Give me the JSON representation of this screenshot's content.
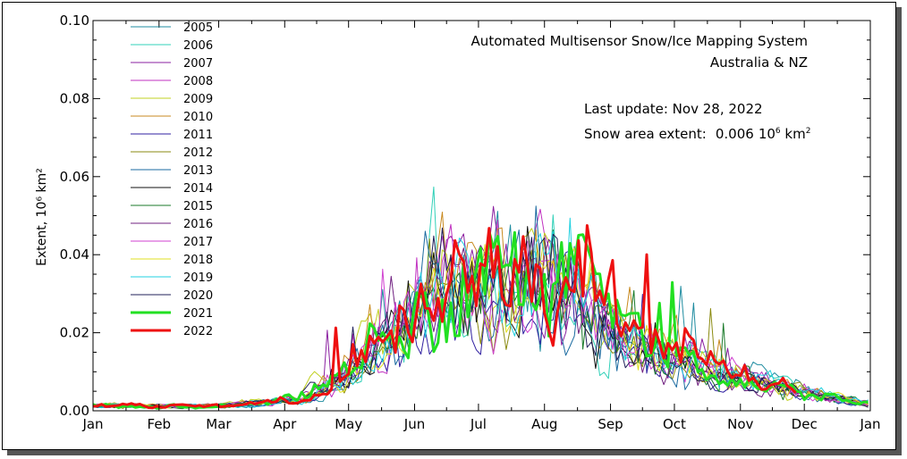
{
  "title": "Automated  Multisensor Snow/Ice Mapping System",
  "region": "Australia & NZ",
  "last_update": "Last update: Nov 28, 2022",
  "snow_area": {
    "label": "Snow area extent:",
    "value": "0.006",
    "unit_base": "10",
    "unit_exp": "6",
    "unit_km": " km",
    "unit_sq": "2"
  },
  "chart_data": {
    "type": "line",
    "ylabel": "Extent, 10⁶ km²",
    "ylim": [
      0,
      0.1
    ],
    "yticks": [
      "0.00",
      "0.02",
      "0.04",
      "0.06",
      "0.08",
      "0.10"
    ],
    "xticks": [
      "Jan",
      "Feb",
      "Mar",
      "Apr",
      "May",
      "Jun",
      "Jul",
      "Aug",
      "Sep",
      "Oct",
      "Nov",
      "Dec",
      "Jan"
    ],
    "xlim": [
      1,
      366
    ],
    "legend_placement": "top-left",
    "series": [
      {
        "name": "2005",
        "color": "#1f8ca0",
        "width": 1
      },
      {
        "name": "2006",
        "color": "#30d0b8",
        "width": 1
      },
      {
        "name": "2007",
        "color": "#8a1fa0",
        "width": 1
      },
      {
        "name": "2008",
        "color": "#c030c0",
        "width": 1
      },
      {
        "name": "2009",
        "color": "#c0d020",
        "width": 1
      },
      {
        "name": "2010",
        "color": "#c88a20",
        "width": 1
      },
      {
        "name": "2011",
        "color": "#3020a0",
        "width": 1
      },
      {
        "name": "2012",
        "color": "#8a8a10",
        "width": 1
      },
      {
        "name": "2013",
        "color": "#1a6aa0",
        "width": 1
      },
      {
        "name": "2014",
        "color": "#101010",
        "width": 1
      },
      {
        "name": "2015",
        "color": "#1a7a2a",
        "width": 1
      },
      {
        "name": "2016",
        "color": "#702080",
        "width": 1
      },
      {
        "name": "2017",
        "color": "#d040d0",
        "width": 1
      },
      {
        "name": "2018",
        "color": "#e0e020",
        "width": 1
      },
      {
        "name": "2019",
        "color": "#20d0e0",
        "width": 1
      },
      {
        "name": "2020",
        "color": "#20205a",
        "width": 1
      },
      {
        "name": "2021",
        "color": "#22e022",
        "width": 3
      },
      {
        "name": "2022",
        "color": "#ee1010",
        "width": 3
      }
    ]
  }
}
